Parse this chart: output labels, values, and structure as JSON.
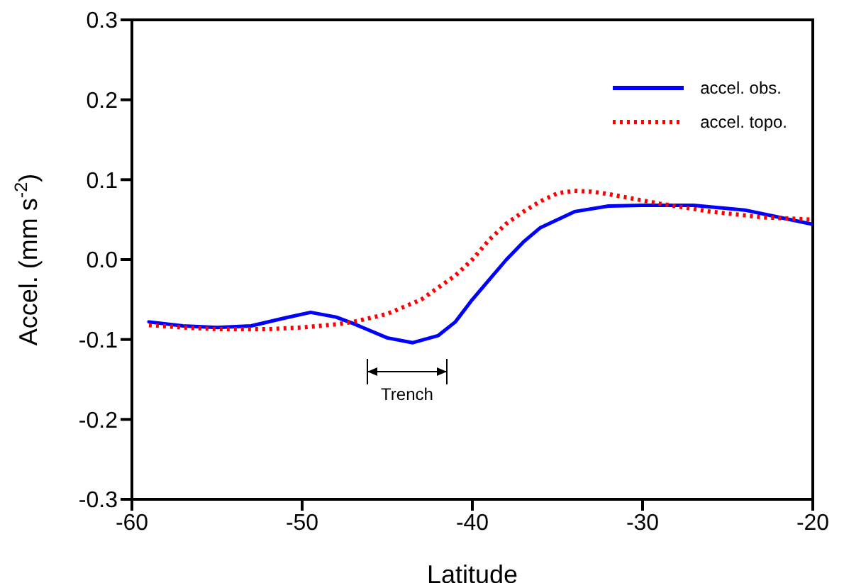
{
  "chart_data": {
    "type": "line",
    "xlabel": "Latitude",
    "ylabel": "Accel. (mm s$^{-2}$)",
    "xlim": [
      -60,
      -20
    ],
    "xticks": [
      -60,
      -50,
      -40,
      -30,
      -20
    ],
    "ylim": [
      -0.3,
      0.3
    ],
    "yticks": [
      {
        "value": -0.3,
        "label": "-0.3"
      },
      {
        "value": -0.2,
        "label": "-0.2"
      },
      {
        "value": -0.1,
        "label": "-0.1"
      },
      {
        "value": 0,
        "label": "0.0"
      },
      {
        "value": 0.1,
        "label": "0.1"
      },
      {
        "value": 0.2,
        "label": "0.2"
      },
      {
        "value": 0.3,
        "label": "0.3"
      }
    ],
    "legend": "top right",
    "marker": "none",
    "annotations": [
      "Trench"
    ],
    "series": [
      {
        "name": "accel. obs.",
        "color": "#0000ff",
        "line_style": "solid",
        "x": [
          -59,
          -57,
          -55,
          -53,
          -51,
          -49.5,
          -48,
          -47,
          -45,
          -43.5,
          -42,
          -41,
          -40,
          -39,
          -38,
          -37,
          -36,
          -34,
          -32,
          -30,
          -27,
          -24,
          -22,
          -20
        ],
        "values": [
          -0.078,
          -0.083,
          -0.085,
          -0.083,
          -0.073,
          -0.066,
          -0.072,
          -0.08,
          -0.098,
          -0.104,
          -0.095,
          -0.078,
          -0.05,
          -0.025,
          0.0,
          0.022,
          0.04,
          0.06,
          0.067,
          0.068,
          0.068,
          0.062,
          0.053,
          0.044
        ]
      },
      {
        "name": "accel. topo.",
        "color": "#ff0000",
        "line_style": "dotted",
        "x": [
          -59,
          -57,
          -55,
          -52,
          -50,
          -48,
          -47,
          -45,
          -43,
          -41,
          -40,
          -39,
          -38,
          -37,
          -36,
          -35,
          -34,
          -33,
          -32,
          -30,
          -29,
          -26,
          -23,
          -20
        ],
        "values": [
          -0.082,
          -0.085,
          -0.087,
          -0.087,
          -0.085,
          -0.081,
          -0.078,
          -0.068,
          -0.05,
          -0.02,
          0.0,
          0.025,
          0.045,
          0.06,
          0.073,
          0.083,
          0.086,
          0.085,
          0.082,
          0.074,
          0.07,
          0.06,
          0.053,
          0.05
        ]
      }
    ]
  }
}
